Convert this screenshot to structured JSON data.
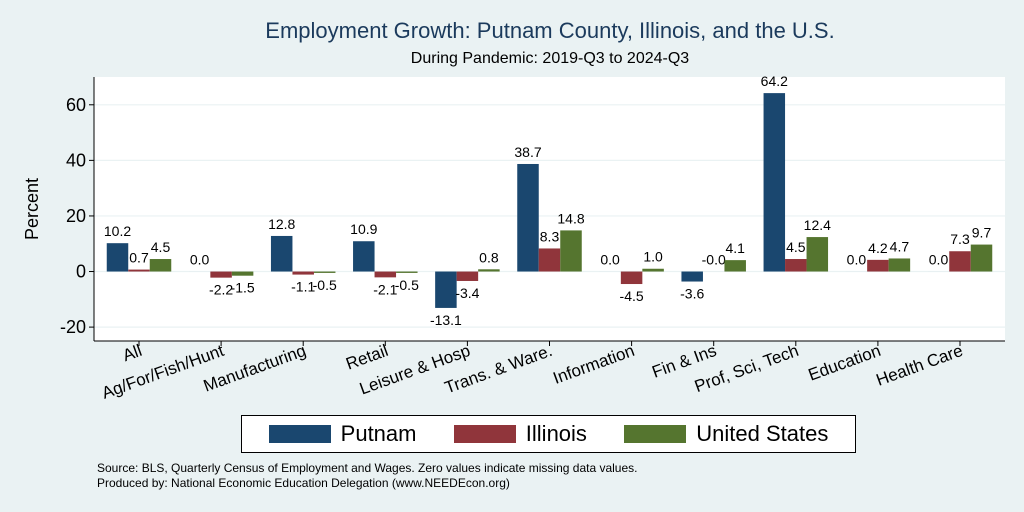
{
  "chart_data": {
    "type": "bar",
    "title": "Employment Growth: Putnam County, Illinois, and the U.S.",
    "subtitle": "During Pandemic: 2019-Q3 to 2024-Q3",
    "ylabel": "Percent",
    "xlabel": "",
    "ylim": [
      -25,
      70
    ],
    "yticks": [
      -20,
      0,
      20,
      40,
      60
    ],
    "grid": true,
    "legend_position": "bottom",
    "categories": [
      "All",
      "Ag/For/Fish/Hunt",
      "Manufacturing",
      "Retail",
      "Leisure & Hosp",
      "Trans. & Ware.",
      "Information",
      "Fin & Ins",
      "Prof, Sci, Tech",
      "Education",
      "Health Care"
    ],
    "series": [
      {
        "name": "Putnam",
        "color": "#1a476f",
        "values": [
          10.2,
          0.0,
          12.8,
          10.9,
          -13.1,
          38.7,
          0.0,
          -3.6,
          64.2,
          0.0,
          0.0
        ],
        "labels": [
          "10.2",
          "0.0",
          "12.8",
          "10.9",
          "-13.1",
          "38.7",
          "0.0",
          "-3.6",
          "64.2",
          "0.0",
          "0.0"
        ]
      },
      {
        "name": "Illinois",
        "color": "#90353b",
        "values": [
          0.7,
          -2.2,
          -1.1,
          -2.1,
          -3.4,
          8.3,
          -4.5,
          -0.0,
          4.5,
          4.2,
          7.3
        ],
        "labels": [
          "0.7",
          "-2.2",
          "-1.1",
          "-2.1",
          "-3.4",
          "8.3",
          "-4.5",
          "-0.0",
          "4.5",
          "4.2",
          "7.3"
        ]
      },
      {
        "name": "United States",
        "color": "#55752f",
        "values": [
          4.5,
          -1.5,
          -0.5,
          -0.5,
          0.8,
          14.8,
          1.0,
          4.1,
          12.4,
          4.7,
          9.7
        ],
        "labels": [
          "4.5",
          "-1.5",
          "-0.5",
          "-0.5",
          "0.8",
          "14.8",
          "1.0",
          "4.1",
          "12.4",
          "4.7",
          "9.7"
        ]
      }
    ]
  },
  "notes": {
    "source": "Source: BLS, Quarterly Census of Employment and Wages. Zero values indicate missing data values.",
    "producer": "Produced by: National Economic Education Delegation (www.NEEDEcon.org)"
  }
}
